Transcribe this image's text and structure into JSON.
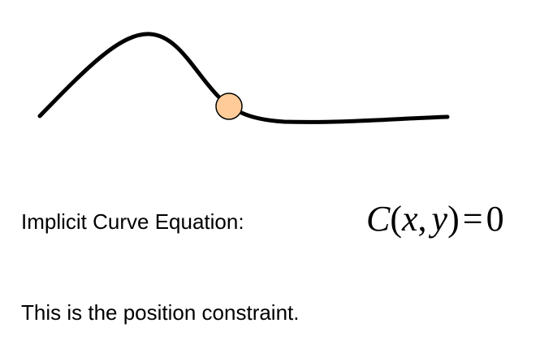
{
  "equation_label": "Implicit Curve Equation:",
  "equation": {
    "C": "C",
    "open": "(",
    "x": "x",
    "comma": ",",
    "y": "y",
    "close": ")",
    "equals": "=",
    "zero": "0"
  },
  "caption": "This is the position constraint.",
  "colors": {
    "curve": "#000000",
    "point_fill": "#ffcc99",
    "point_stroke": "#000000"
  }
}
